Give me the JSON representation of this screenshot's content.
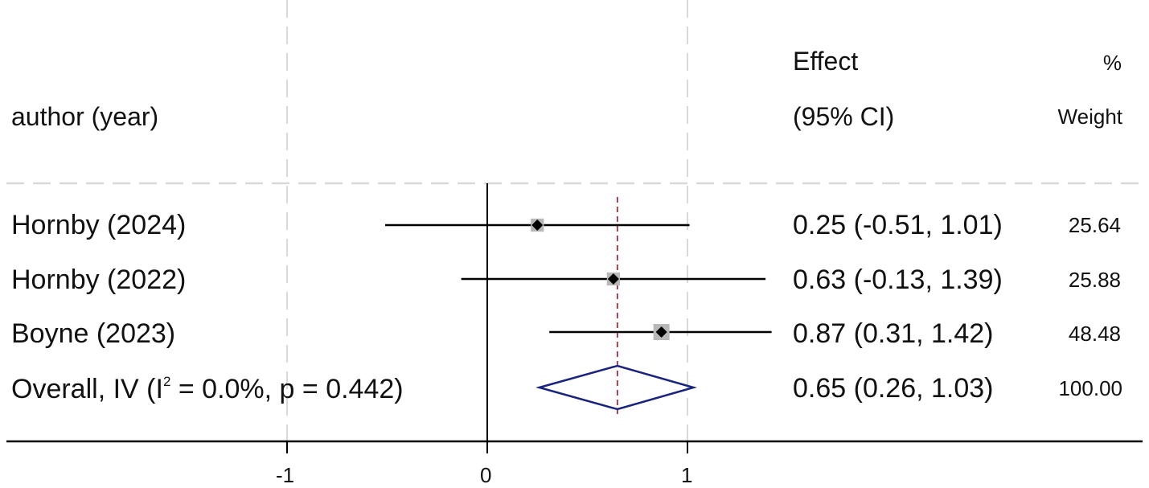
{
  "header": {
    "study_col": "author (year)",
    "effect_line1": "Effect",
    "effect_line2": "(95% CI)",
    "weight_line1": "%",
    "weight_line2": "Weight"
  },
  "rows": [
    {
      "label": "Hornby (2024)",
      "effect_text": "0.25 (-0.51, 1.01)",
      "weight_text": "25.64"
    },
    {
      "label": "Hornby (2022)",
      "effect_text": "0.63 (-0.13, 1.39)",
      "weight_text": "25.88"
    },
    {
      "label": "Boyne (2023)",
      "effect_text": "0.87 (0.31, 1.42)",
      "weight_text": "48.48"
    }
  ],
  "overall": {
    "label_prefix": "Overall, IV (I",
    "label_sup": "2",
    "label_suffix": " = 0.0%, p = 0.442)",
    "effect_text": "0.65 (0.26, 1.03)",
    "weight_text": "100.00"
  },
  "axis": {
    "ticks": [
      {
        "value": -1,
        "label": "-1"
      },
      {
        "value": 0,
        "label": "0"
      },
      {
        "value": 1,
        "label": "1"
      }
    ]
  },
  "colors": {
    "ci_line": "#000000",
    "point": "#000000",
    "weight_box": "#b8b8b8",
    "diamond": "#1a237e",
    "overall_line": "#a0303c",
    "grid": "#d9d9d9",
    "axis": "#000000"
  },
  "chart_data": {
    "type": "forest",
    "title": "",
    "xlabel": "",
    "ylabel": "",
    "x_ticks": [
      -1,
      0,
      1
    ],
    "xlim": [
      -2.0,
      3.3
    ],
    "null_line": 0,
    "grid": "dashed vertical gridlines at x ticks; dashed horizontal separator below header",
    "columns": [
      "author (year)",
      "Effect (95% CI)",
      "% Weight"
    ],
    "studies": [
      {
        "label": "Hornby (2024)",
        "effect": 0.25,
        "ci_low": -0.51,
        "ci_high": 1.01,
        "weight": 25.64
      },
      {
        "label": "Hornby (2022)",
        "effect": 0.63,
        "ci_low": -0.13,
        "ci_high": 1.39,
        "weight": 25.88
      },
      {
        "label": "Boyne (2023)",
        "effect": 0.87,
        "ci_low": 0.31,
        "ci_high": 1.42,
        "weight": 48.48
      }
    ],
    "overall": {
      "label": "Overall, IV (I^2 = 0.0%, p = 0.442)",
      "method": "IV",
      "effect": 0.65,
      "ci_low": 0.26,
      "ci_high": 1.03,
      "weight": 100.0,
      "i_squared": "0.0%",
      "p_heterogeneity": 0.442
    }
  }
}
